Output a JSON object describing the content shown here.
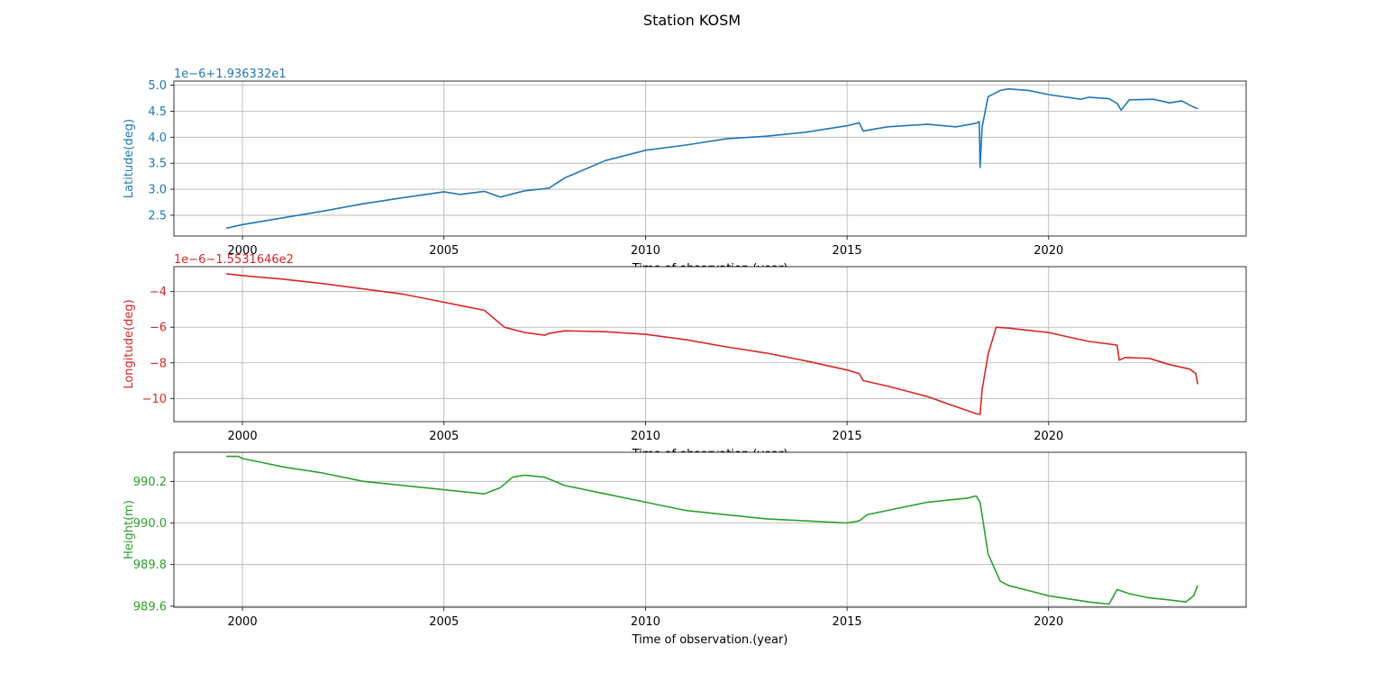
{
  "figure": {
    "suptitle": "Station KOSM"
  },
  "colors": {
    "latitude": "#1f77b4",
    "longitude": "#d62728",
    "height": "#2ca02c",
    "grid": "#b0b0b0"
  },
  "chart_data": [
    {
      "type": "line",
      "name": "latitude",
      "title": "",
      "xlabel": "Time of observation.(year)",
      "ylabel": "Latitude(deg)",
      "offset_text": "1e−6+1.936332e1",
      "xlim": [
        1998.3,
        2024.9
      ],
      "ylim": [
        2.1,
        5.08
      ],
      "xticks": [
        2000,
        2005,
        2010,
        2015,
        2020
      ],
      "yticks": [
        2.5,
        3.0,
        3.5,
        4.0,
        4.5,
        5.0
      ],
      "ytick_labels": [
        "2.5",
        "3.0",
        "3.5",
        "4.0",
        "4.5",
        "5.0"
      ],
      "grid": true,
      "series": [
        {
          "x": [
            1999.6,
            2000.0,
            2001.0,
            2002.0,
            2003.0,
            2004.0,
            2005.0,
            2005.4,
            2006.0,
            2006.4,
            2007.0,
            2007.6,
            2008.0,
            2009.0,
            2010.0,
            2011.0,
            2012.0,
            2013.0,
            2014.0,
            2015.0,
            2015.3,
            2015.4,
            2016.0,
            2017.0,
            2017.7,
            2018.2,
            2018.28,
            2018.3,
            2018.35,
            2018.5,
            2018.8,
            2019.0,
            2019.5,
            2020.0,
            2020.8,
            2021.0,
            2021.5,
            2021.7,
            2021.8,
            2022.0,
            2022.6,
            2023.0,
            2023.3,
            2023.6,
            2023.7
          ],
          "y": [
            2.25,
            2.32,
            2.45,
            2.58,
            2.72,
            2.84,
            2.95,
            2.9,
            2.96,
            2.85,
            2.97,
            3.02,
            3.22,
            3.55,
            3.75,
            3.85,
            3.97,
            4.02,
            4.1,
            4.22,
            4.28,
            4.12,
            4.2,
            4.25,
            4.2,
            4.27,
            4.3,
            3.42,
            4.2,
            4.78,
            4.9,
            4.93,
            4.9,
            4.82,
            4.73,
            4.77,
            4.74,
            4.65,
            4.52,
            4.72,
            4.73,
            4.66,
            4.7,
            4.58,
            4.55
          ]
        }
      ]
    },
    {
      "type": "line",
      "name": "longitude",
      "title": "",
      "xlabel": "Time of observation.(year)",
      "ylabel": "Longitude(deg)",
      "offset_text": "1e−6−1.5531646e2",
      "xlim": [
        1998.3,
        2024.9
      ],
      "ylim": [
        -11.3,
        -2.6
      ],
      "xticks": [
        2000,
        2005,
        2010,
        2015,
        2020
      ],
      "yticks": [
        -10,
        -8,
        -6,
        -4
      ],
      "ytick_labels": [
        "−10",
        "−8",
        "−6",
        "−4"
      ],
      "grid": true,
      "series": [
        {
          "x": [
            1999.6,
            2000.0,
            2001.0,
            2002.0,
            2003.0,
            2004.0,
            2005.0,
            2006.0,
            2006.5,
            2007.0,
            2007.5,
            2007.6,
            2008.0,
            2009.0,
            2010.0,
            2011.0,
            2012.0,
            2013.0,
            2014.0,
            2015.0,
            2015.3,
            2015.4,
            2016.0,
            2017.0,
            2017.5,
            2018.2,
            2018.3,
            2018.35,
            2018.5,
            2018.7,
            2019.0,
            2020.0,
            2020.5,
            2021.0,
            2021.7,
            2021.75,
            2021.9,
            2022.5,
            2023.0,
            2023.5,
            2023.65,
            2023.7
          ],
          "y": [
            -3.0,
            -3.1,
            -3.3,
            -3.55,
            -3.85,
            -4.15,
            -4.6,
            -5.05,
            -6.0,
            -6.3,
            -6.45,
            -6.35,
            -6.2,
            -6.25,
            -6.4,
            -6.7,
            -7.1,
            -7.45,
            -7.9,
            -8.4,
            -8.6,
            -9.0,
            -9.3,
            -9.9,
            -10.3,
            -10.85,
            -10.9,
            -9.5,
            -7.5,
            -6.0,
            -6.05,
            -6.3,
            -6.55,
            -6.8,
            -7.0,
            -7.85,
            -7.7,
            -7.75,
            -8.1,
            -8.35,
            -8.6,
            -9.2
          ]
        }
      ]
    },
    {
      "type": "line",
      "name": "height",
      "title": "",
      "xlabel": "Time of observation.(year)",
      "ylabel": "Height(m)",
      "offset_text": "",
      "xlim": [
        1998.3,
        2024.9
      ],
      "ylim": [
        989.595,
        990.34
      ],
      "xticks": [
        2000,
        2005,
        2010,
        2015,
        2020
      ],
      "yticks": [
        989.6,
        989.8,
        990.0,
        990.2
      ],
      "ytick_labels": [
        "989.6",
        "989.8",
        "990.0",
        "990.2"
      ],
      "grid": true,
      "series": [
        {
          "x": [
            1999.6,
            1999.9,
            2000.0,
            2000.5,
            2001.0,
            2002.0,
            2003.0,
            2004.0,
            2005.0,
            2006.0,
            2006.4,
            2006.7,
            2007.0,
            2007.5,
            2008.0,
            2009.0,
            2010.0,
            2011.0,
            2012.0,
            2013.0,
            2014.0,
            2015.0,
            2015.3,
            2015.5,
            2016.0,
            2017.0,
            2018.0,
            2018.2,
            2018.3,
            2018.5,
            2018.8,
            2019.0,
            2020.0,
            2021.0,
            2021.5,
            2021.7,
            2022.0,
            2022.5,
            2023.0,
            2023.4,
            2023.6,
            2023.7
          ],
          "y": [
            990.32,
            990.32,
            990.31,
            990.29,
            990.27,
            990.24,
            990.2,
            990.18,
            990.16,
            990.14,
            990.17,
            990.22,
            990.23,
            990.22,
            990.18,
            990.14,
            990.1,
            990.06,
            990.04,
            990.02,
            990.01,
            990.0,
            990.01,
            990.04,
            990.06,
            990.1,
            990.12,
            990.13,
            990.1,
            989.85,
            989.72,
            989.7,
            989.65,
            989.62,
            989.61,
            989.68,
            989.66,
            989.64,
            989.63,
            989.62,
            989.65,
            989.7
          ]
        }
      ]
    }
  ]
}
